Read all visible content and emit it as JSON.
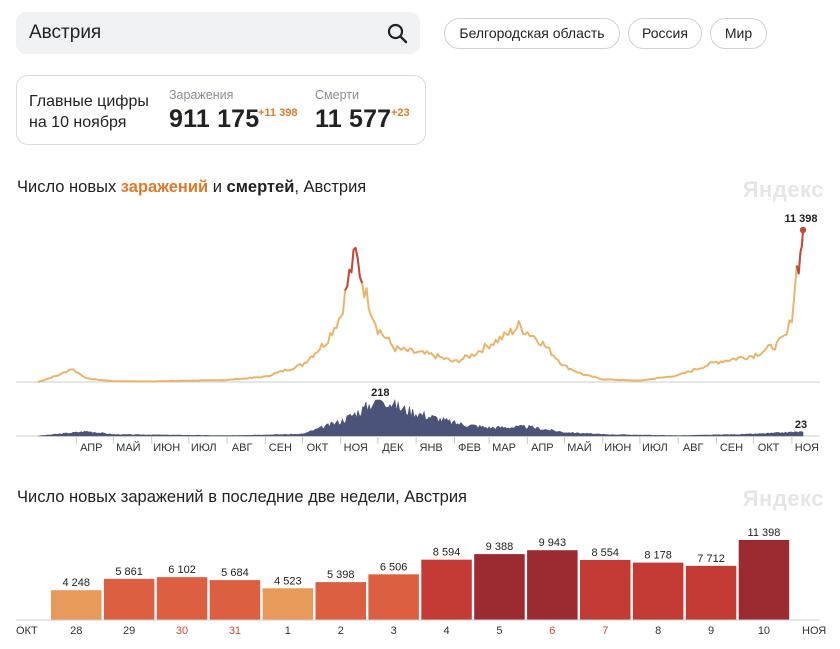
{
  "search": {
    "value": "Австрия"
  },
  "regions": [
    {
      "label": "Белгородская область"
    },
    {
      "label": "Россия"
    },
    {
      "label": "Мир"
    }
  ],
  "summary": {
    "title_line1": "Главные цифры",
    "title_line2": "на 10 ноября",
    "infections": {
      "label": "Заражения",
      "value": "911 175",
      "delta": "+11 398"
    },
    "deaths": {
      "label": "Смерти",
      "value": "11 577",
      "delta": "+23"
    }
  },
  "chart1": {
    "title_prefix": "Число новых ",
    "title_infections": "заражений",
    "title_and": " и ",
    "title_deaths": "смертей",
    "title_suffix": ", Австрия",
    "watermark": "Яндекс"
  },
  "chart2": {
    "title": "Число новых заражений в последние две недели, Австрия",
    "watermark": "Яндекс"
  },
  "colors": {
    "accent_orange": "#e07a2a",
    "infection_line": "#e9b56a",
    "infection_peak": "#c4473a",
    "deaths_area": "#4b5478",
    "bar_light": "#e89a5a",
    "bar_mid": "#dc5f42",
    "bar_red": "#c43b35",
    "bar_dark": "#9b2a31",
    "weekend_label": "#d04a3a"
  },
  "chart_data": [
    {
      "type": "area",
      "title": "Число новых заражений и смертей, Австрия",
      "x_ticks": [
        "АПР",
        "МАЙ",
        "ИЮН",
        "ИЮЛ",
        "АВГ",
        "СЕН",
        "ОКТ",
        "НОЯ",
        "ДЕК",
        "ЯНВ",
        "ФЕВ",
        "МАР",
        "АПР",
        "МАЙ",
        "ИЮН",
        "ИЮЛ",
        "АВГ",
        "СЕН",
        "ОКТ",
        "НОЯ"
      ],
      "series": [
        {
          "name": "Заражения",
          "x": [
            "2020-03-01",
            "2020-03-20",
            "2020-03-28",
            "2020-04-10",
            "2020-05-01",
            "2020-06-01",
            "2020-07-01",
            "2020-08-01",
            "2020-09-01",
            "2020-10-01",
            "2020-10-20",
            "2020-11-01",
            "2020-11-08",
            "2020-11-13",
            "2020-11-20",
            "2020-12-01",
            "2020-12-15",
            "2021-01-01",
            "2021-01-15",
            "2021-02-01",
            "2021-02-15",
            "2021-03-01",
            "2021-03-15",
            "2021-03-25",
            "2021-04-10",
            "2021-05-01",
            "2021-05-15",
            "2021-06-01",
            "2021-07-01",
            "2021-08-01",
            "2021-09-01",
            "2021-10-01",
            "2021-10-20",
            "2021-10-28",
            "2021-11-01",
            "2021-11-05",
            "2021-11-08",
            "2021-11-10"
          ],
          "values": [
            0,
            600,
            1000,
            250,
            60,
            40,
            100,
            150,
            400,
            1300,
            3000,
            5000,
            8000,
            9600,
            7000,
            4000,
            2500,
            2200,
            2000,
            1500,
            2000,
            2800,
            3500,
            4200,
            3200,
            1200,
            600,
            200,
            100,
            500,
            1500,
            2000,
            2800,
            3500,
            5000,
            8500,
            9500,
            11398
          ]
        },
        {
          "name": "Смерти",
          "x": [
            "2020-03-01",
            "2020-04-10",
            "2020-05-01",
            "2020-08-01",
            "2020-10-01",
            "2020-11-01",
            "2020-11-20",
            "2020-12-03",
            "2020-12-20",
            "2021-01-10",
            "2021-02-01",
            "2021-03-01",
            "2021-04-01",
            "2021-05-01",
            "2021-06-01",
            "2021-08-01",
            "2021-10-01",
            "2021-11-10"
          ],
          "values": [
            0,
            25,
            8,
            2,
            10,
            80,
            150,
            218,
            150,
            110,
            70,
            45,
            50,
            20,
            8,
            2,
            10,
            23
          ]
        }
      ],
      "annotations": [
        "11 398",
        "218",
        "23"
      ]
    },
    {
      "type": "bar",
      "title": "Число новых заражений в последние две недели, Австрия",
      "categories": [
        "28",
        "29",
        "30",
        "31",
        "1",
        "2",
        "3",
        "4",
        "5",
        "6",
        "7",
        "8",
        "9",
        "10"
      ],
      "values": [
        4248,
        5861,
        6102,
        5684,
        4523,
        5398,
        6506,
        8594,
        9388,
        9943,
        8554,
        8178,
        7712,
        11398
      ],
      "labels": [
        "4 248",
        "5 861",
        "6 102",
        "5 684",
        "4 523",
        "5 398",
        "6 506",
        "8 594",
        "9 388",
        "9 943",
        "8 554",
        "8 178",
        "7 712",
        "11 398"
      ],
      "weekend": [
        false,
        false,
        true,
        true,
        false,
        false,
        false,
        false,
        false,
        true,
        true,
        false,
        false,
        false
      ],
      "month_start": "ОКТ",
      "month_end": "НОЯ"
    }
  ]
}
